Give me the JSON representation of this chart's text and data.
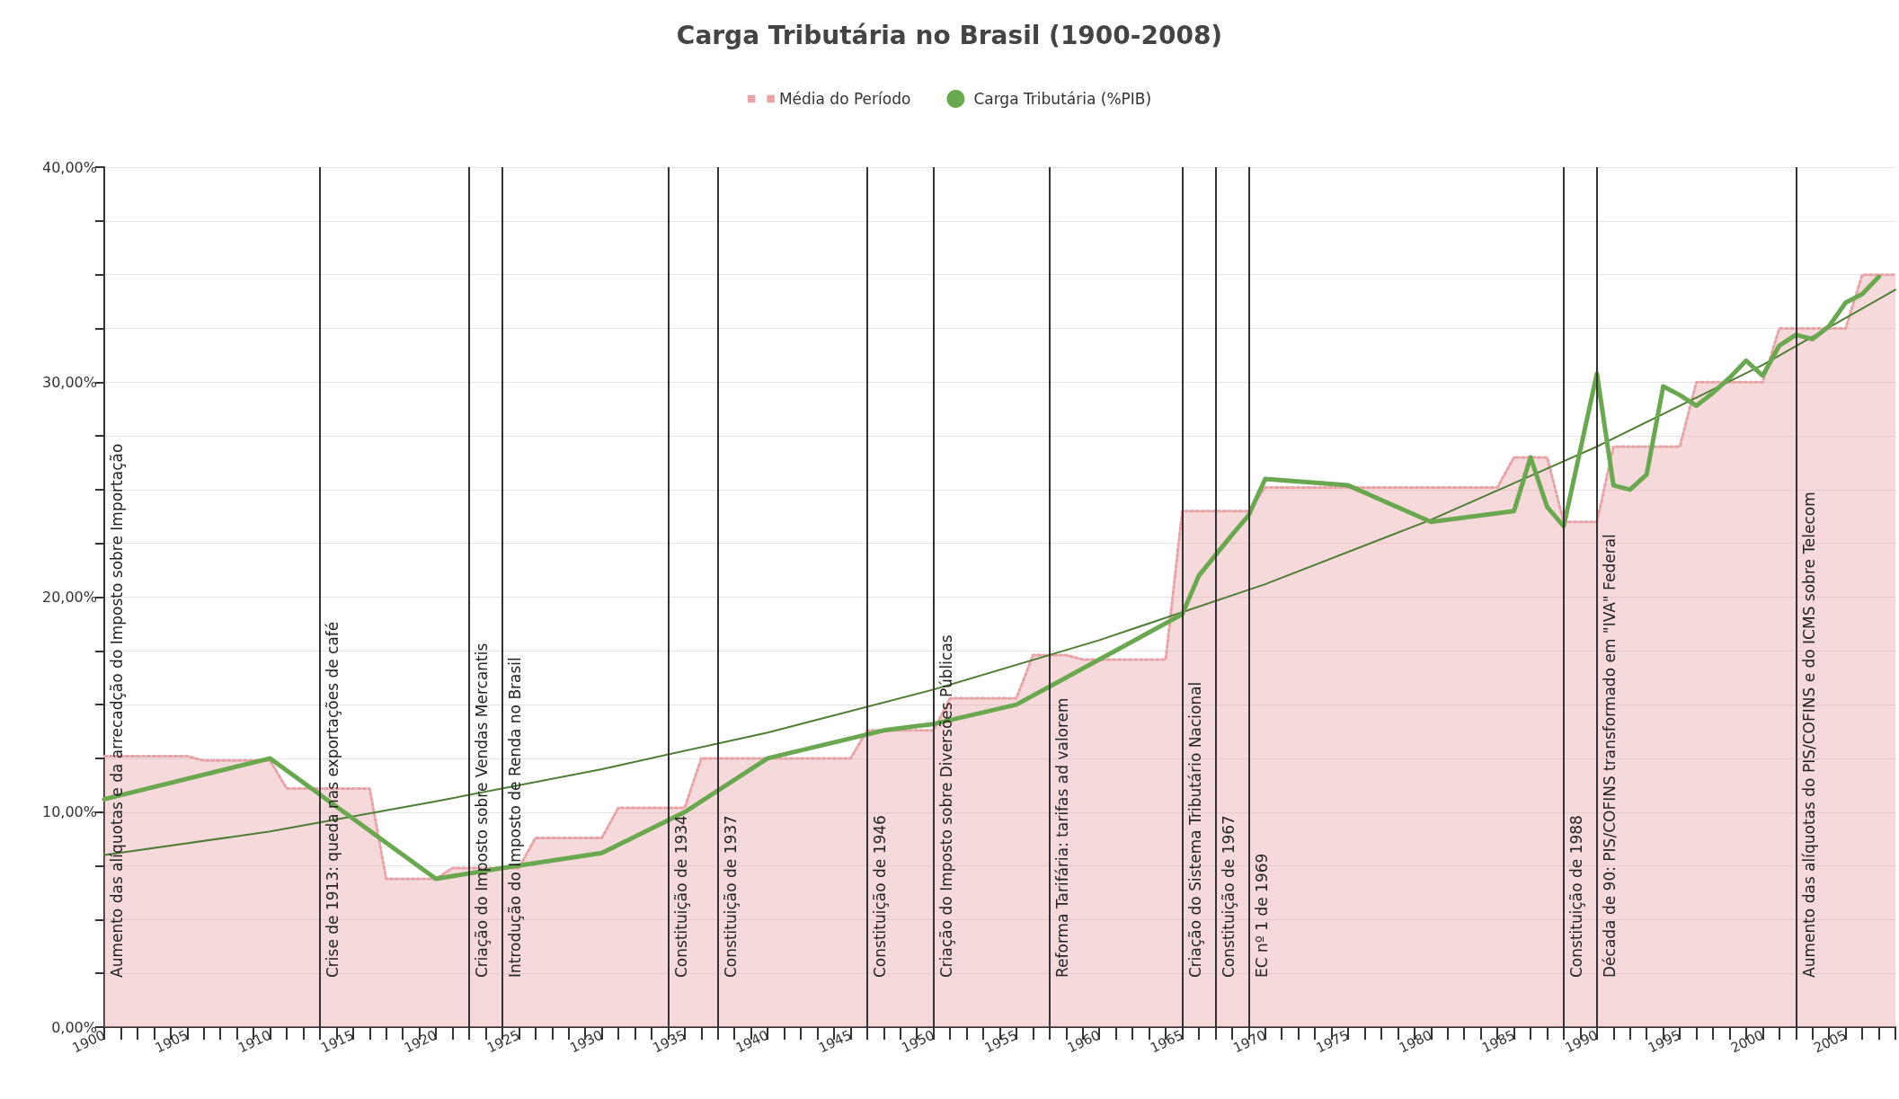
{
  "chart_data": {
    "type": "line",
    "title": "Carga Tributária no Brasil (1900-2008)",
    "legend": "top",
    "grid": "y",
    "xlim": [
      1900,
      2008
    ],
    "xticks": [
      1900,
      {
        "value": 1901,
        "label": null
      },
      {
        "value": 1902,
        "label": null
      },
      {
        "value": 1903,
        "label": null
      },
      {
        "value": 1904,
        "label": null
      },
      1905,
      {
        "value": 1906,
        "label": null
      },
      {
        "value": 1907,
        "label": null
      },
      {
        "value": 1908,
        "label": null
      },
      {
        "value": 1909,
        "label": null
      },
      1910,
      {
        "value": 1911,
        "label": null
      },
      {
        "value": 1912,
        "label": null
      },
      {
        "value": 1913,
        "label": null
      },
      {
        "value": 1914,
        "label": null
      },
      1915,
      {
        "value": 1916,
        "label": null
      },
      {
        "value": 1917,
        "label": null
      },
      {
        "value": 1918,
        "label": null
      },
      {
        "value": 1919,
        "label": null
      },
      1920,
      {
        "value": 1921,
        "label": null
      },
      {
        "value": 1922,
        "label": null
      },
      {
        "value": 1923,
        "label": null
      },
      {
        "value": 1924,
        "label": null
      },
      1925,
      {
        "value": 1926,
        "label": null
      },
      {
        "value": 1927,
        "label": null
      },
      {
        "value": 1928,
        "label": null
      },
      {
        "value": 1929,
        "label": null
      },
      1930,
      {
        "value": 1931,
        "label": null
      },
      {
        "value": 1932,
        "label": null
      },
      {
        "value": 1933,
        "label": null
      },
      {
        "value": 1934,
        "label": null
      },
      1935,
      {
        "value": 1936,
        "label": null
      },
      {
        "value": 1937,
        "label": null
      },
      {
        "value": 1938,
        "label": null
      },
      {
        "value": 1939,
        "label": null
      },
      1940,
      {
        "value": 1941,
        "label": null
      },
      {
        "value": 1942,
        "label": null
      },
      {
        "value": 1943,
        "label": null
      },
      {
        "value": 1944,
        "label": null
      },
      1945,
      {
        "value": 1946,
        "label": null
      },
      {
        "value": 1947,
        "label": null
      },
      {
        "value": 1948,
        "label": null
      },
      {
        "value": 1949,
        "label": null
      },
      1950,
      {
        "value": 1951,
        "label": null
      },
      {
        "value": 1952,
        "label": null
      },
      {
        "value": 1953,
        "label": null
      },
      {
        "value": 1954,
        "label": null
      },
      1955,
      {
        "value": 1956,
        "label": null
      },
      {
        "value": 1957,
        "label": null
      },
      {
        "value": 1958,
        "label": null
      },
      {
        "value": 1959,
        "label": null
      },
      1960,
      {
        "value": 1961,
        "label": null
      },
      {
        "value": 1962,
        "label": null
      },
      {
        "value": 1963,
        "label": null
      },
      {
        "value": 1964,
        "label": null
      },
      1965,
      {
        "value": 1966,
        "label": null
      },
      {
        "value": 1967,
        "label": null
      },
      {
        "value": 1968,
        "label": null
      },
      {
        "value": 1969,
        "label": null
      },
      1970,
      {
        "value": 1971,
        "label": null
      },
      {
        "value": 1972,
        "label": null
      },
      {
        "value": 1973,
        "label": null
      },
      {
        "value": 1974,
        "label": null
      },
      1975,
      {
        "value": 1976,
        "label": null
      },
      {
        "value": 1977,
        "label": null
      },
      {
        "value": 1978,
        "label": null
      },
      {
        "value": 1979,
        "label": null
      },
      1980,
      {
        "value": 1981,
        "label": null
      },
      {
        "value": 1982,
        "label": null
      },
      {
        "value": 1983,
        "label": null
      },
      {
        "value": 1984,
        "label": null
      },
      1985,
      {
        "value": 1986,
        "label": null
      },
      {
        "value": 1987,
        "label": null
      },
      {
        "value": 1988,
        "label": null
      },
      {
        "value": 1989,
        "label": null
      },
      1990,
      {
        "value": 1991,
        "label": null
      },
      {
        "value": 1992,
        "label": null
      },
      {
        "value": 1993,
        "label": null
      },
      {
        "value": 1994,
        "label": null
      },
      1995,
      {
        "value": 1996,
        "label": null
      },
      {
        "value": 1997,
        "label": null
      },
      {
        "value": 1998,
        "label": null
      },
      {
        "value": 1999,
        "label": null
      },
      2000,
      {
        "value": 2001,
        "label": null
      },
      {
        "value": 2002,
        "label": null
      },
      {
        "value": 2003,
        "label": null
      },
      {
        "value": 2004,
        "label": null
      },
      2005,
      {
        "value": 2006,
        "label": null
      },
      {
        "value": 2007,
        "label": null
      },
      {
        "value": 2008,
        "label": null
      }
    ],
    "ylim": [
      0,
      40
    ],
    "yticks": [
      {
        "value": 0,
        "label": "0,00%"
      },
      {
        "value": 2.5,
        "label": null
      },
      {
        "value": 5,
        "label": null
      },
      {
        "value": 7.5,
        "label": null
      },
      {
        "value": 10,
        "label": "10,00%"
      },
      {
        "value": 12.5,
        "label": null
      },
      {
        "value": 15,
        "label": null
      },
      {
        "value": 17.5,
        "label": null
      },
      {
        "value": 20,
        "label": "20,00%"
      },
      {
        "value": 22.5,
        "label": null
      },
      {
        "value": 25,
        "label": null
      },
      {
        "value": 27.5,
        "label": null
      },
      {
        "value": 30,
        "label": "30,00%"
      },
      {
        "value": 32.5,
        "label": null
      },
      {
        "value": 35,
        "label": null
      },
      {
        "value": 37.5,
        "label": null
      },
      {
        "value": 40,
        "label": "40,00%"
      }
    ],
    "series": [
      {
        "name": "Média do Período",
        "type": "area",
        "line_style": "dotted",
        "color": "#e8a3a6",
        "x": [
          1900,
          1905,
          1906,
          1910,
          1911,
          1916,
          1917,
          1920,
          1921,
          1925,
          1926,
          1930,
          1931,
          1935,
          1936,
          1945,
          1946,
          1950,
          1951,
          1955,
          1956,
          1958,
          1959,
          1964,
          1965,
          1969,
          1970,
          1984,
          1985,
          1987,
          1988,
          1990,
          1991,
          1995,
          1996,
          2000,
          2001,
          2005,
          2006,
          2008
        ],
        "values": [
          12.6,
          12.6,
          12.4,
          12.4,
          11.1,
          11.1,
          6.9,
          6.9,
          7.4,
          7.4,
          8.8,
          8.8,
          10.2,
          10.2,
          12.5,
          12.5,
          13.8,
          13.8,
          15.3,
          15.3,
          17.3,
          17.3,
          17.1,
          17.1,
          24.0,
          24.0,
          25.1,
          25.1,
          26.5,
          26.5,
          23.5,
          23.5,
          27.0,
          27.0,
          30.0,
          30.0,
          32.5,
          32.5,
          35.0,
          35.0
        ]
      },
      {
        "name": "Carga Tributária (%PIB)",
        "line_style": "solid",
        "color": "#6aa84f",
        "x": [
          1900,
          1910,
          1920,
          1924,
          1930,
          1935,
          1940,
          1947,
          1950,
          1955,
          1965,
          1966,
          1968,
          1969,
          1970,
          1975,
          1980,
          1985,
          1986,
          1987,
          1988,
          1990,
          1991,
          1992,
          1993,
          1994,
          1995,
          1996,
          1997,
          1998,
          1999,
          2000,
          2001,
          2002,
          2003,
          2004,
          2005,
          2006,
          2007
        ],
        "values": [
          10.6,
          12.5,
          6.9,
          7.4,
          8.1,
          10.0,
          12.5,
          13.8,
          14.1,
          15.0,
          19.2,
          21.0,
          22.9,
          23.8,
          25.5,
          25.2,
          23.5,
          24.0,
          26.5,
          24.2,
          23.3,
          30.4,
          25.2,
          25.0,
          25.7,
          29.8,
          29.4,
          28.9,
          29.5,
          30.2,
          31.0,
          30.3,
          31.7,
          32.2,
          32.0,
          32.6,
          33.7,
          34.1,
          34.9
        ]
      },
      {
        "line_style": "solid",
        "color": "#4e7d33",
        "x": [
          1900,
          1910,
          1920,
          1930,
          1940,
          1950,
          1960,
          1970,
          1980,
          1990,
          2000,
          2008
        ],
        "values": [
          8.0,
          9.1,
          10.5,
          12.0,
          13.7,
          15.7,
          18.0,
          20.6,
          23.6,
          27.0,
          30.8,
          34.3
        ]
      }
    ],
    "annotations": [
      "Aumento das alíquotas e da arrecadção do Imposto sobre Importação"
    ],
    "ref_lines": [
      {
        "axis": "x",
        "value": 1913,
        "label": "Crise de 1913: queda nas exportações de café"
      },
      {
        "axis": "x",
        "value": 1922,
        "label": "Criação do Imposto sobre Vendas Mercantis"
      },
      {
        "axis": "x",
        "value": 1924,
        "label": "Introdução do Imposto de Renda no Brasil"
      },
      {
        "axis": "x",
        "value": 1934,
        "label": "Constituição de 1934"
      },
      {
        "axis": "x",
        "value": 1937,
        "label": "Constituição de 1937"
      },
      {
        "axis": "x",
        "value": 1946,
        "label": "Constituição de 1946"
      },
      {
        "axis": "x",
        "value": 1950,
        "label": "Criação do Imposto sobre Diversões Públicas"
      },
      {
        "axis": "x",
        "value": 1957,
        "label": "Reforma Tarifária: tarifas ad valorem"
      },
      {
        "axis": "x",
        "value": 1965,
        "label": "Criação do Sistema Tributário Nacional"
      },
      {
        "axis": "x",
        "value": 1967,
        "label": "Constituição de 1967"
      },
      {
        "axis": "x",
        "value": 1969,
        "label": "EC nº 1 de 1969"
      },
      {
        "axis": "x",
        "value": 1988,
        "label": "Constituição de 1988"
      },
      {
        "axis": "x",
        "value": 1990,
        "label": "Década de 90: PIS/COFINS transformado em \"IVA\" Federal"
      },
      {
        "axis": "x",
        "value": 2002,
        "label": "Aumento das alíquotas do PIS/COFINS e do ICMS sobre Telecom"
      }
    ]
  }
}
